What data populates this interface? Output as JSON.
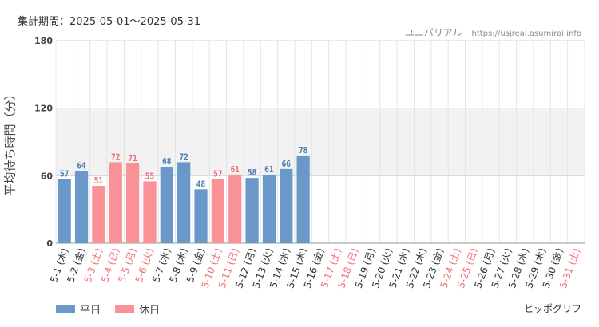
{
  "header": {
    "period": "集計期間：2025-05-01～2025-05-31",
    "source_name": "ユニバリアル",
    "source_url": "https://usjreal.asumirai.info"
  },
  "legend": {
    "weekday": "平日",
    "holiday": "休日"
  },
  "footer": {
    "label": "ヒッポグリフ"
  },
  "colors": {
    "weekday": "#6a98c8",
    "holiday": "#fa9196",
    "band": "#f2f2f2",
    "grid": "#e4e4e4"
  },
  "chart_data": {
    "type": "bar",
    "title": "",
    "xlabel": "",
    "ylabel": "平均待ち時間（分）",
    "ylim": [
      0,
      180
    ],
    "yticks": [
      0,
      60,
      120,
      180
    ],
    "shaded_band": [
      60,
      120
    ],
    "categories": [
      "5-1 (木)",
      "5-2 (金)",
      "5-3 (土)",
      "5-4 (日)",
      "5-5 (月)",
      "5-6 (火)",
      "5-7 (水)",
      "5-8 (木)",
      "5-9 (金)",
      "5-10 (土)",
      "5-11 (日)",
      "5-12 (月)",
      "5-13 (火)",
      "5-14 (水)",
      "5-15 (木)",
      "5-16 (金)",
      "5-17 (土)",
      "5-18 (日)",
      "5-19 (月)",
      "5-20 (火)",
      "5-21 (水)",
      "5-22 (木)",
      "5-23 (金)",
      "5-24 (土)",
      "5-25 (日)",
      "5-26 (月)",
      "5-27 (火)",
      "5-28 (水)",
      "5-29 (木)",
      "5-30 (金)",
      "5-31 (土)"
    ],
    "day_type": [
      "平日",
      "平日",
      "休日",
      "休日",
      "休日",
      "休日",
      "平日",
      "平日",
      "平日",
      "休日",
      "休日",
      "平日",
      "平日",
      "平日",
      "平日",
      "平日",
      "休日",
      "休日",
      "平日",
      "平日",
      "平日",
      "平日",
      "平日",
      "休日",
      "休日",
      "平日",
      "平日",
      "平日",
      "平日",
      "平日",
      "休日"
    ],
    "values": [
      57,
      64,
      51,
      72,
      71,
      55,
      68,
      72,
      48,
      57,
      61,
      58,
      61,
      66,
      78,
      null,
      null,
      null,
      null,
      null,
      null,
      null,
      null,
      null,
      null,
      null,
      null,
      null,
      null,
      null,
      null
    ]
  }
}
